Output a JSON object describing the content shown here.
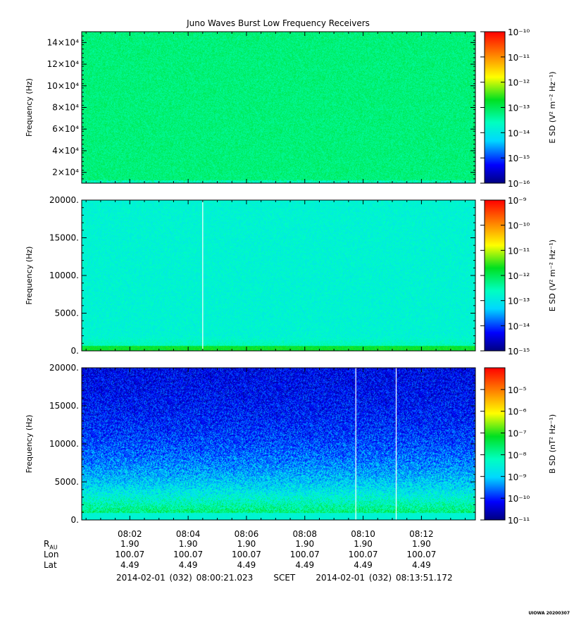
{
  "chart_data": [
    {
      "type": "heatmap",
      "title": "Juno Waves Burst Low Frequency Receivers",
      "ylabel": "Frequency (Hz)",
      "ylim": [
        10000,
        150000
      ],
      "yticks": [
        {
          "v": 20000,
          "label": "2×10⁴"
        },
        {
          "v": 40000,
          "label": "4×10⁴"
        },
        {
          "v": 60000,
          "label": "6×10⁴"
        },
        {
          "v": 80000,
          "label": "8×10⁴"
        },
        {
          "v": 100000,
          "label": "10×10⁴"
        },
        {
          "v": 120000,
          "label": "12×10⁴"
        },
        {
          "v": 140000,
          "label": "14×10⁴"
        }
      ],
      "colorbar_label": "E SD (V² m⁻² Hz⁻¹)",
      "colorbar_exp_range": [
        -16,
        -10
      ],
      "colorbar_ticks": [
        "10⁻¹⁰",
        "10⁻¹¹",
        "10⁻¹²",
        "10⁻¹³",
        "10⁻¹⁴",
        "10⁻¹⁵",
        "10⁻¹⁶"
      ],
      "base_exp": -13.2,
      "gaps": []
    },
    {
      "type": "heatmap",
      "ylabel": "Frequency (Hz)",
      "ylim": [
        0,
        20000
      ],
      "yticks": [
        {
          "v": 0,
          "label": "0."
        },
        {
          "v": 5000,
          "label": "5000."
        },
        {
          "v": 10000,
          "label": "10000."
        },
        {
          "v": 15000,
          "label": "15000."
        },
        {
          "v": 20000,
          "label": "20000."
        }
      ],
      "colorbar_label": "E SD (V² m⁻² Hz⁻¹)",
      "colorbar_exp_range": [
        -15,
        -9
      ],
      "colorbar_ticks": [
        "10⁻⁹",
        "10⁻¹⁰",
        "10⁻¹¹",
        "10⁻¹²",
        "10⁻¹³",
        "10⁻¹⁴",
        "10⁻¹⁵"
      ],
      "base_exp": -12.8,
      "gaps": [
        "08:04:30"
      ]
    },
    {
      "type": "heatmap",
      "ylabel": "Frequency (Hz)",
      "ylim": [
        0,
        20000
      ],
      "yticks": [
        {
          "v": 0,
          "label": "0."
        },
        {
          "v": 5000,
          "label": "5000."
        },
        {
          "v": 10000,
          "label": "10000."
        },
        {
          "v": 15000,
          "label": "15000."
        },
        {
          "v": 20000,
          "label": "20000."
        }
      ],
      "colorbar_label": "B SD (nT² Hz⁻¹)",
      "colorbar_exp_range": [
        -11,
        -4
      ],
      "colorbar_ticks": [
        "10⁻⁵",
        "10⁻⁶",
        "10⁻⁷",
        "10⁻⁸",
        "10⁻⁹",
        "10⁻¹⁰",
        "10⁻¹¹"
      ],
      "colorbar_tick_exps": [
        -5,
        -6,
        -7,
        -8,
        -9,
        -10,
        -11
      ],
      "base_exp": -10.4,
      "gaps": [
        "08:09:45",
        "08:11:08"
      ]
    }
  ],
  "time_axis": {
    "start": "08:00:21",
    "end": "08:13:51",
    "ticks": [
      "08:02",
      "08:04",
      "08:06",
      "08:08",
      "08:10",
      "08:12"
    ]
  },
  "ephemeris": {
    "labels": {
      "rau": "R",
      "rau_sub": "AU",
      "lon": "Lon",
      "lat": "Lat"
    },
    "rau": [
      "1.90",
      "1.90",
      "1.90",
      "1.90",
      "1.90",
      "1.90"
    ],
    "lon": [
      "100.07",
      "100.07",
      "100.07",
      "100.07",
      "100.07",
      "100.07"
    ],
    "lat": [
      "4.49",
      "4.49",
      "4.49",
      "4.49",
      "4.49",
      "4.49"
    ]
  },
  "footer": {
    "start": "2014-02-01 (032) 08:00:21.023",
    "frame": "SCET",
    "end": "2014-02-01 (032) 08:13:51.172"
  },
  "stamp": "UIOWA 20200307"
}
